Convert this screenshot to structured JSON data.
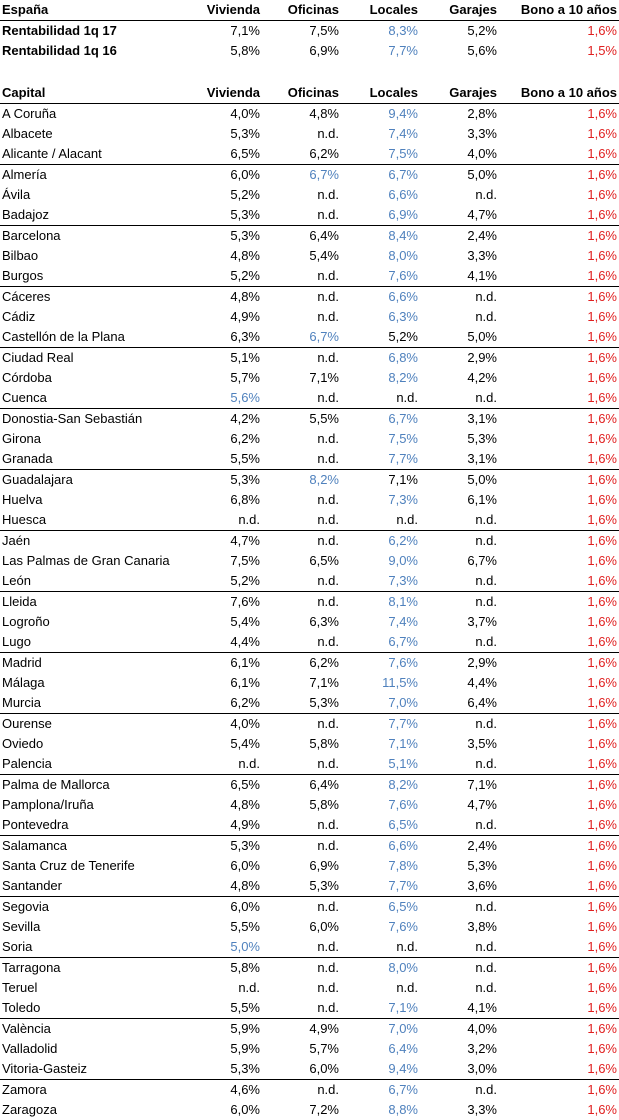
{
  "spain": {
    "header": [
      "España",
      "Vivienda",
      "Oficinas",
      "Locales",
      "Garajes",
      "Bono a 10 años"
    ],
    "rows": [
      [
        "Rentabilidad 1q 17",
        "7,1%",
        "7,5%",
        "8,3%",
        "5,2%",
        "1,6%"
      ],
      [
        "Rentabilidad 1q 16",
        "5,8%",
        "6,9%",
        "7,7%",
        "5,6%",
        "1,5%"
      ]
    ]
  },
  "capitals": {
    "header": [
      "Capital",
      "Vivienda",
      "Oficinas",
      "Locales",
      "Garajes",
      "Bono a 10 años"
    ],
    "rows": [
      [
        "A Coruña",
        "4,0%",
        "4,8%",
        "9,4%",
        "2,8%",
        "1,6%"
      ],
      [
        "Albacete",
        "5,3%",
        "n.d.",
        "7,4%",
        "3,3%",
        "1,6%"
      ],
      [
        "Alicante / Alacant",
        "6,5%",
        "6,2%",
        "7,5%",
        "4,0%",
        "1,6%"
      ],
      [
        "Almería",
        "6,0%",
        "6,7%",
        "6,7%",
        "5,0%",
        "1,6%"
      ],
      [
        "Ávila",
        "5,2%",
        "n.d.",
        "6,6%",
        "n.d.",
        "1,6%"
      ],
      [
        "Badajoz",
        "5,3%",
        "n.d.",
        "6,9%",
        "4,7%",
        "1,6%"
      ],
      [
        "Barcelona",
        "5,3%",
        "6,4%",
        "8,4%",
        "2,4%",
        "1,6%"
      ],
      [
        "Bilbao",
        "4,8%",
        "5,4%",
        "8,0%",
        "3,3%",
        "1,6%"
      ],
      [
        "Burgos",
        "5,2%",
        "n.d.",
        "7,6%",
        "4,1%",
        "1,6%"
      ],
      [
        "Cáceres",
        "4,8%",
        "n.d.",
        "6,6%",
        "n.d.",
        "1,6%"
      ],
      [
        "Cádiz",
        "4,9%",
        "n.d.",
        "6,3%",
        "n.d.",
        "1,6%"
      ],
      [
        "Castellón de la Plana",
        "6,3%",
        "6,7%",
        "5,2%",
        "5,0%",
        "1,6%"
      ],
      [
        "Ciudad Real",
        "5,1%",
        "n.d.",
        "6,8%",
        "2,9%",
        "1,6%"
      ],
      [
        "Córdoba",
        "5,7%",
        "7,1%",
        "8,2%",
        "4,2%",
        "1,6%"
      ],
      [
        "Cuenca",
        "5,6%",
        "n.d.",
        "n.d.",
        "n.d.",
        "1,6%"
      ],
      [
        "Donostia-San Sebastián",
        "4,2%",
        "5,5%",
        "6,7%",
        "3,1%",
        "1,6%"
      ],
      [
        "Girona",
        "6,2%",
        "n.d.",
        "7,5%",
        "5,3%",
        "1,6%"
      ],
      [
        "Granada",
        "5,5%",
        "n.d.",
        "7,7%",
        "3,1%",
        "1,6%"
      ],
      [
        "Guadalajara",
        "5,3%",
        "8,2%",
        "7,1%",
        "5,0%",
        "1,6%"
      ],
      [
        "Huelva",
        "6,8%",
        "n.d.",
        "7,3%",
        "6,1%",
        "1,6%"
      ],
      [
        "Huesca",
        "n.d.",
        "n.d.",
        "n.d.",
        "n.d.",
        "1,6%"
      ],
      [
        "Jaén",
        "4,7%",
        "n.d.",
        "6,2%",
        "n.d.",
        "1,6%"
      ],
      [
        "Las Palmas de Gran Canaria",
        "7,5%",
        "6,5%",
        "9,0%",
        "6,7%",
        "1,6%"
      ],
      [
        "León",
        "5,2%",
        "n.d.",
        "7,3%",
        "n.d.",
        "1,6%"
      ],
      [
        "Lleida",
        "7,6%",
        "n.d.",
        "8,1%",
        "n.d.",
        "1,6%"
      ],
      [
        "Logroño",
        "5,4%",
        "6,3%",
        "7,4%",
        "3,7%",
        "1,6%"
      ],
      [
        "Lugo",
        "4,4%",
        "n.d.",
        "6,7%",
        "n.d.",
        "1,6%"
      ],
      [
        "Madrid",
        "6,1%",
        "6,2%",
        "7,6%",
        "2,9%",
        "1,6%"
      ],
      [
        "Málaga",
        "6,1%",
        "7,1%",
        "11,5%",
        "4,4%",
        "1,6%"
      ],
      [
        "Murcia",
        "6,2%",
        "5,3%",
        "7,0%",
        "6,4%",
        "1,6%"
      ],
      [
        "Ourense",
        "4,0%",
        "n.d.",
        "7,7%",
        "n.d.",
        "1,6%"
      ],
      [
        "Oviedo",
        "5,4%",
        "5,8%",
        "7,1%",
        "3,5%",
        "1,6%"
      ],
      [
        "Palencia",
        "n.d.",
        "n.d.",
        "5,1%",
        "n.d.",
        "1,6%"
      ],
      [
        "Palma de Mallorca",
        "6,5%",
        "6,4%",
        "8,2%",
        "7,1%",
        "1,6%"
      ],
      [
        "Pamplona/Iruña",
        "4,8%",
        "5,8%",
        "7,6%",
        "4,7%",
        "1,6%"
      ],
      [
        "Pontevedra",
        "4,9%",
        "n.d.",
        "6,5%",
        "n.d.",
        "1,6%"
      ],
      [
        "Salamanca",
        "5,3%",
        "n.d.",
        "6,6%",
        "2,4%",
        "1,6%"
      ],
      [
        "Santa Cruz de Tenerife",
        "6,0%",
        "6,9%",
        "7,8%",
        "5,3%",
        "1,6%"
      ],
      [
        "Santander",
        "4,8%",
        "5,3%",
        "7,7%",
        "3,6%",
        "1,6%"
      ],
      [
        "Segovia",
        "6,0%",
        "n.d.",
        "6,5%",
        "n.d.",
        "1,6%"
      ],
      [
        "Sevilla",
        "5,5%",
        "6,0%",
        "7,6%",
        "3,8%",
        "1,6%"
      ],
      [
        "Soria",
        "5,0%",
        "n.d.",
        "n.d.",
        "n.d.",
        "1,6%"
      ],
      [
        "Tarragona",
        "5,8%",
        "n.d.",
        "8,0%",
        "n.d.",
        "1,6%"
      ],
      [
        "Teruel",
        "n.d.",
        "n.d.",
        "n.d.",
        "n.d.",
        "1,6%"
      ],
      [
        "Toledo",
        "5,5%",
        "n.d.",
        "7,1%",
        "4,1%",
        "1,6%"
      ],
      [
        "València",
        "5,9%",
        "4,9%",
        "7,0%",
        "4,0%",
        "1,6%"
      ],
      [
        "Valladolid",
        "5,9%",
        "5,7%",
        "6,4%",
        "3,2%",
        "1,6%"
      ],
      [
        "Vitoria-Gasteiz",
        "5,3%",
        "6,0%",
        "9,4%",
        "3,0%",
        "1,6%"
      ],
      [
        "Zamora",
        "4,6%",
        "n.d.",
        "6,7%",
        "n.d.",
        "1,6%"
      ],
      [
        "Zaragoza",
        "6,0%",
        "7,2%",
        "8,8%",
        "3,3%",
        "1,6%"
      ]
    ]
  },
  "colors": {
    "highlight": "#4f81bd",
    "bond": "#e02020",
    "text": "#000000"
  }
}
